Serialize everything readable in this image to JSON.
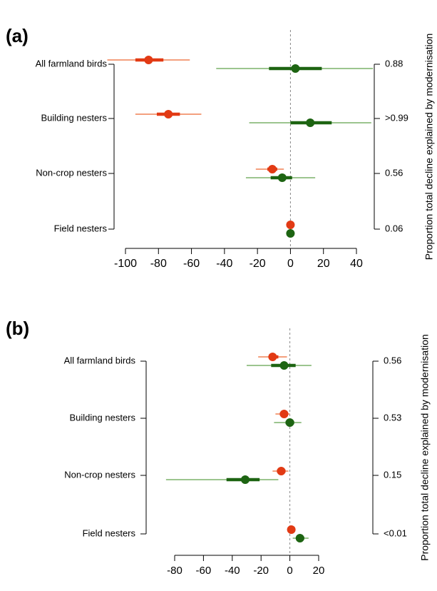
{
  "chart_data": [
    {
      "type": "forest",
      "label": "(a)",
      "categories": [
        "All farmland birds",
        "Building nesters",
        "Non-crop nesters",
        "Field nesters"
      ],
      "right_labels": [
        "0.88",
        ">0.99",
        "0.56",
        "0.06"
      ],
      "right_axis_label": "Proportion total decline explained by modernisation",
      "xlim": [
        -100,
        40
      ],
      "xticks": [
        -100,
        -80,
        -60,
        -40,
        -20,
        0,
        20,
        40
      ],
      "series": [
        {
          "color": "#e23a14",
          "interval_color": "#f4a07e",
          "values": [
            -86,
            -74,
            -11,
            0
          ],
          "inner": [
            [
              -94,
              -77
            ],
            [
              -81,
              -67
            ],
            [
              -14,
              -8
            ],
            null
          ],
          "outer": [
            [
              -111,
              -61
            ],
            [
              -94,
              -54
            ],
            [
              -21,
              -4
            ],
            null
          ]
        },
        {
          "color": "#1d6412",
          "interval_color": "#9cc58f",
          "values": [
            3,
            12,
            -5,
            0
          ],
          "inner": [
            [
              -13,
              19
            ],
            [
              0,
              25
            ],
            [
              -12,
              1
            ],
            null
          ],
          "outer": [
            [
              -45,
              50
            ],
            [
              -25,
              49
            ],
            [
              -27,
              15
            ],
            null
          ]
        }
      ]
    },
    {
      "type": "forest",
      "label": "(b)",
      "categories": [
        "All farmland birds",
        "Building nesters",
        "Non-crop nesters",
        "Field nesters"
      ],
      "right_labels": [
        "0.56",
        "0.53",
        "0.15",
        "<0.01"
      ],
      "right_axis_label": "Proportion total decline explained by modernisation",
      "xlim": [
        -80,
        20
      ],
      "xticks": [
        -80,
        -60,
        -40,
        -20,
        0,
        20
      ],
      "series": [
        {
          "color": "#e23a14",
          "interval_color": "#f4a07e",
          "values": [
            -12,
            -4,
            -6,
            1
          ],
          "inner": [
            [
              -14,
              -8
            ],
            [
              -7,
              -2
            ],
            [
              -9,
              -3
            ],
            null
          ],
          "outer": [
            [
              -22,
              -2
            ],
            [
              -10,
              0
            ],
            [
              -12,
              -1
            ],
            null
          ]
        },
        {
          "color": "#1d6412",
          "interval_color": "#9cc58f",
          "values": [
            -4,
            0,
            -31,
            7
          ],
          "inner": [
            [
              -13,
              4
            ],
            [
              -3,
              3
            ],
            [
              -44,
              -21
            ],
            [
              5,
              10
            ]
          ],
          "outer": [
            [
              -30,
              15
            ],
            [
              -11,
              8
            ],
            [
              -86,
              -8
            ],
            [
              2,
              13
            ]
          ]
        }
      ]
    }
  ]
}
